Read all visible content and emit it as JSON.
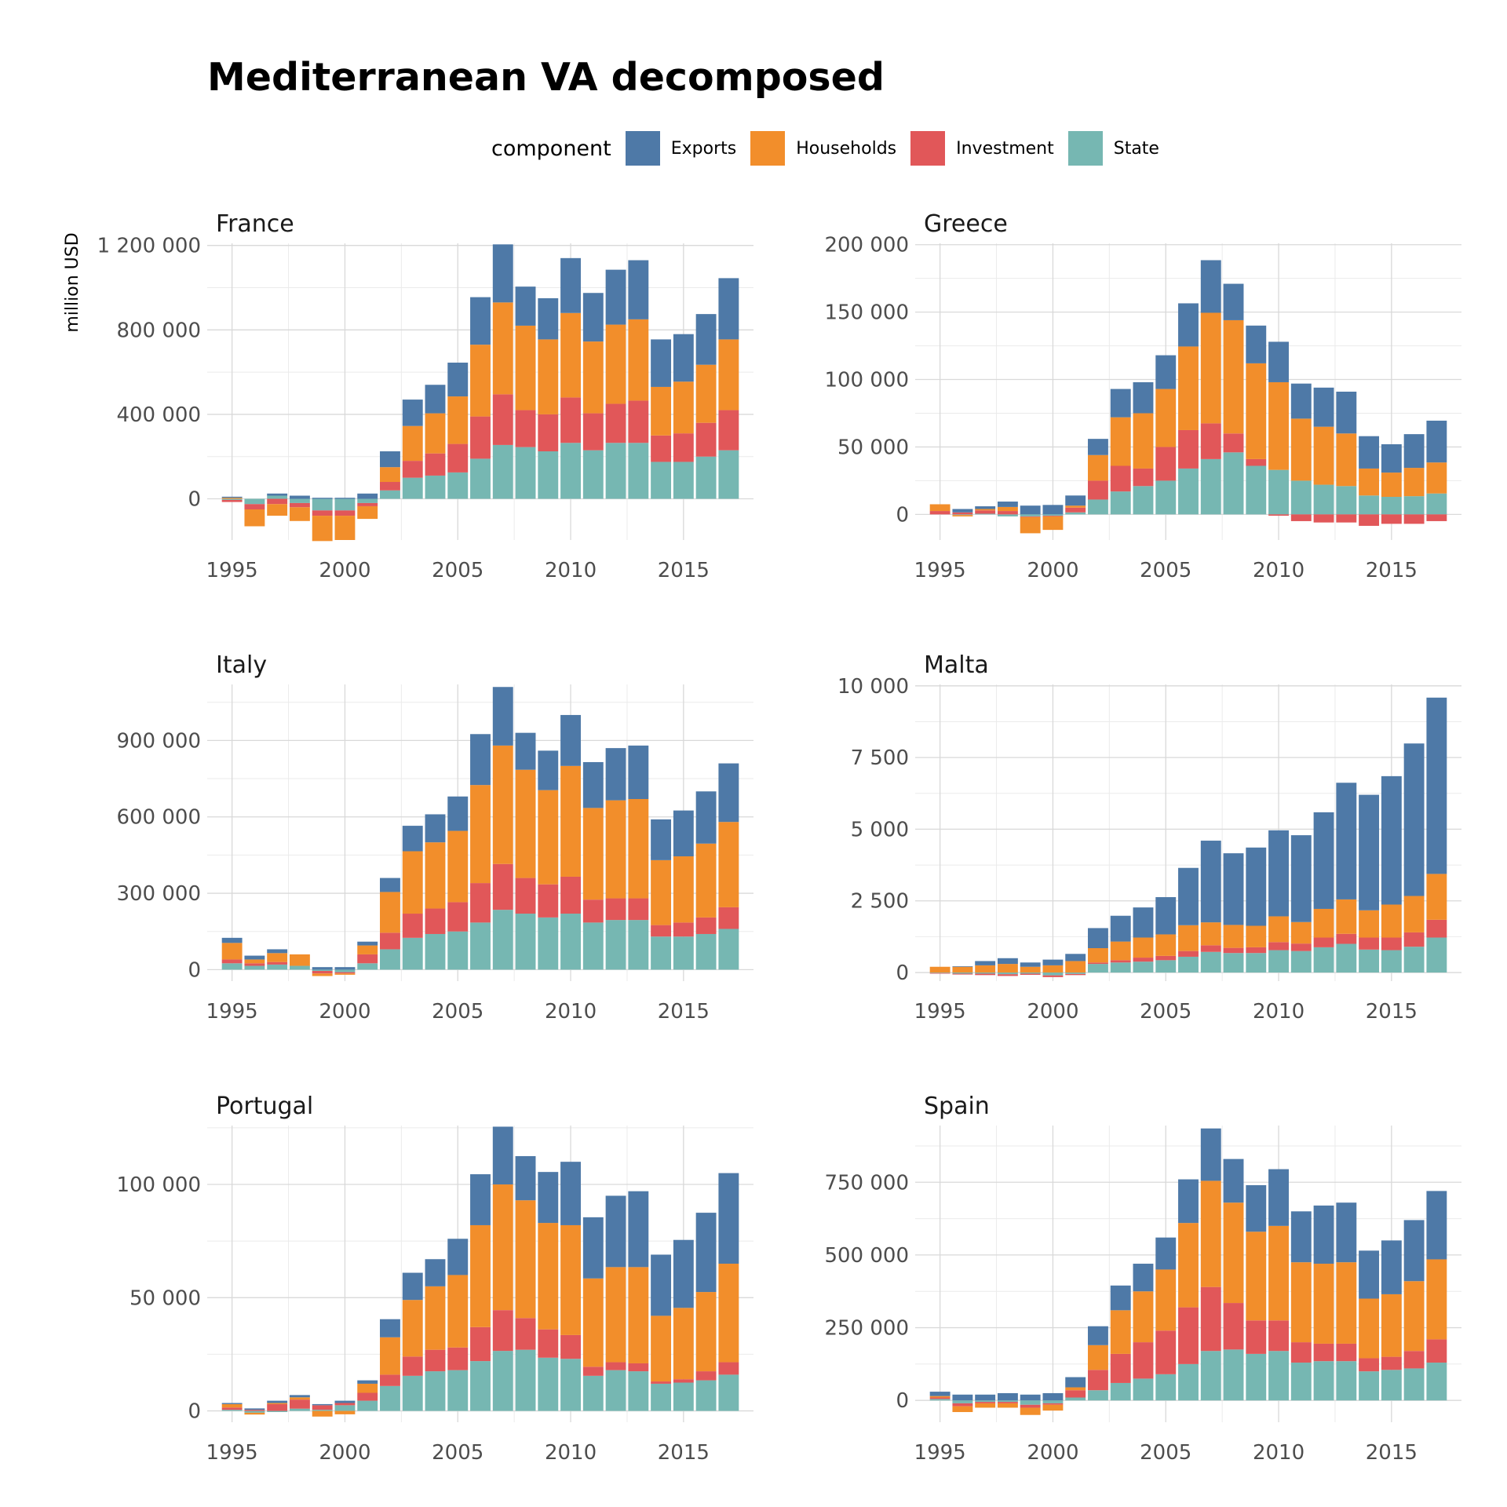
{
  "title": "Mediterranean VA decomposed",
  "legend": {
    "title": "component",
    "items": [
      {
        "label": "Exports",
        "color": "#4e79a7"
      },
      {
        "label": "Households",
        "color": "#f28e2b"
      },
      {
        "label": "Investment",
        "color": "#e15759"
      },
      {
        "label": "State",
        "color": "#76b7b2"
      }
    ]
  },
  "y_axis_label": "million USD",
  "chart_data": [
    {
      "type": "bar",
      "stacked": true,
      "title": "France",
      "ylabel": "million USD",
      "x": [
        1995,
        1996,
        1997,
        1998,
        1999,
        2000,
        2001,
        2002,
        2003,
        2004,
        2005,
        2006,
        2007,
        2008,
        2009,
        2010,
        2011,
        2012,
        2013,
        2014,
        2015,
        2016,
        2017
      ],
      "ylim": [
        -195000,
        1210000
      ],
      "yticks": [
        0,
        400000,
        800000,
        1200000
      ],
      "yticklabels": [
        "0",
        "400 000",
        "800 000",
        "1 200 000"
      ],
      "series": [
        {
          "name": "State",
          "values": [
            -5000,
            -25000,
            15000,
            -20000,
            -55000,
            -55000,
            -20000,
            40000,
            100000,
            110000,
            125000,
            190000,
            255000,
            245000,
            225000,
            265000,
            230000,
            265000,
            265000,
            175000,
            175000,
            200000,
            230000
          ]
        },
        {
          "name": "Investment",
          "values": [
            -10000,
            -25000,
            -25000,
            -20000,
            -25000,
            -25000,
            -15000,
            40000,
            80000,
            105000,
            135000,
            200000,
            240000,
            175000,
            175000,
            215000,
            175000,
            185000,
            200000,
            125000,
            135000,
            160000,
            190000
          ]
        },
        {
          "name": "Households",
          "values": [
            5000,
            -80000,
            -55000,
            -65000,
            -120000,
            -115000,
            -60000,
            70000,
            165000,
            190000,
            225000,
            340000,
            435000,
            400000,
            355000,
            400000,
            340000,
            375000,
            385000,
            230000,
            245000,
            275000,
            335000
          ]
        },
        {
          "name": "Exports",
          "values": [
            5000,
            0,
            10000,
            15000,
            5000,
            5000,
            25000,
            75000,
            125000,
            135000,
            160000,
            225000,
            275000,
            185000,
            195000,
            260000,
            230000,
            260000,
            280000,
            225000,
            225000,
            240000,
            290000
          ]
        }
      ]
    },
    {
      "type": "bar",
      "stacked": true,
      "title": "Greece",
      "x": [
        1995,
        1996,
        1997,
        1998,
        1999,
        2000,
        2001,
        2002,
        2003,
        2004,
        2005,
        2006,
        2007,
        2008,
        2009,
        2010,
        2011,
        2012,
        2013,
        2014,
        2015,
        2016,
        2017
      ],
      "ylim": [
        -19000,
        201000
      ],
      "yticks": [
        0,
        50000,
        100000,
        150000,
        200000
      ],
      "yticklabels": [
        "0",
        "50 000",
        "100 000",
        "150 000",
        "200 000"
      ],
      "series": [
        {
          "name": "State",
          "values": [
            0,
            -500,
            500,
            -1500,
            -1500,
            -1000,
            1500,
            11000,
            17000,
            21000,
            25000,
            34000,
            41000,
            46000,
            36000,
            33000,
            25000,
            22000,
            21000,
            14000,
            13000,
            13500,
            15500
          ]
        },
        {
          "name": "Investment",
          "values": [
            2500,
            1500,
            2500,
            2500,
            -500,
            -500,
            3500,
            14000,
            19000,
            13000,
            25000,
            28500,
            26500,
            14000,
            5000,
            -1000,
            -5000,
            -6000,
            -6000,
            -8500,
            -7000,
            -7000,
            -5000
          ]
        },
        {
          "name": "Households",
          "values": [
            5000,
            -1000,
            1000,
            3000,
            -12000,
            -10000,
            1500,
            19000,
            36000,
            41000,
            43000,
            62000,
            82000,
            84000,
            71000,
            65000,
            46000,
            43000,
            39000,
            20000,
            18000,
            21000,
            23000
          ]
        },
        {
          "name": "Exports",
          "values": [
            0,
            2500,
            2000,
            4000,
            6500,
            7000,
            7500,
            12000,
            21000,
            23000,
            25000,
            32000,
            39000,
            27000,
            28000,
            30000,
            26000,
            29000,
            31000,
            24000,
            21000,
            25000,
            31000
          ]
        }
      ]
    },
    {
      "type": "bar",
      "stacked": true,
      "title": "Italy",
      "x": [
        1995,
        1996,
        1997,
        1998,
        1999,
        2000,
        2001,
        2002,
        2003,
        2004,
        2005,
        2006,
        2007,
        2008,
        2009,
        2010,
        2011,
        2012,
        2013,
        2014,
        2015,
        2016,
        2017
      ],
      "ylim": [
        -45000,
        1120000
      ],
      "yticks": [
        0,
        300000,
        600000,
        900000
      ],
      "yticklabels": [
        "0",
        "300 000",
        "600 000",
        "900 000"
      ],
      "series": [
        {
          "name": "State",
          "values": [
            25000,
            15000,
            20000,
            15000,
            -5000,
            -10000,
            25000,
            80000,
            125000,
            140000,
            150000,
            185000,
            235000,
            220000,
            205000,
            220000,
            185000,
            195000,
            195000,
            130000,
            130000,
            140000,
            160000
          ]
        },
        {
          "name": "Investment",
          "values": [
            15000,
            10000,
            10000,
            0,
            -10000,
            -5000,
            35000,
            65000,
            95000,
            100000,
            115000,
            155000,
            180000,
            140000,
            130000,
            145000,
            90000,
            85000,
            85000,
            45000,
            55000,
            65000,
            85000
          ]
        },
        {
          "name": "Households",
          "values": [
            65000,
            15000,
            35000,
            45000,
            -10000,
            -5000,
            35000,
            160000,
            245000,
            260000,
            280000,
            385000,
            465000,
            425000,
            370000,
            435000,
            360000,
            385000,
            390000,
            255000,
            260000,
            290000,
            335000
          ]
        },
        {
          "name": "Exports",
          "values": [
            20000,
            15000,
            15000,
            0,
            10000,
            10000,
            15000,
            55000,
            100000,
            110000,
            135000,
            200000,
            230000,
            145000,
            155000,
            200000,
            180000,
            205000,
            210000,
            160000,
            180000,
            205000,
            230000
          ]
        }
      ]
    },
    {
      "type": "bar",
      "stacked": true,
      "title": "Malta",
      "x": [
        1995,
        1996,
        1997,
        1998,
        1999,
        2000,
        2001,
        2002,
        2003,
        2004,
        2005,
        2006,
        2007,
        2008,
        2009,
        2010,
        2011,
        2012,
        2013,
        2014,
        2015,
        2016,
        2017
      ],
      "ylim": [
        -300,
        10050
      ],
      "yticks": [
        0,
        2500,
        5000,
        7500,
        10000
      ],
      "yticklabels": [
        "0",
        "2 500",
        "5 000",
        "7 500",
        "10 000"
      ],
      "series": [
        {
          "name": "State",
          "values": [
            -20,
            -40,
            -40,
            -60,
            -40,
            -100,
            -50,
            300,
            350,
            380,
            430,
            550,
            720,
            680,
            680,
            780,
            750,
            880,
            1000,
            800,
            780,
            900,
            1220
          ]
        },
        {
          "name": "Investment",
          "values": [
            -20,
            -30,
            -50,
            -60,
            -40,
            -60,
            -40,
            50,
            80,
            140,
            150,
            200,
            230,
            180,
            200,
            280,
            260,
            340,
            350,
            420,
            440,
            500,
            620
          ]
        },
        {
          "name": "Households",
          "values": [
            200,
            200,
            250,
            300,
            200,
            250,
            400,
            500,
            650,
            700,
            750,
            900,
            800,
            800,
            750,
            900,
            750,
            1000,
            1200,
            950,
            1150,
            1270,
            1600
          ]
        },
        {
          "name": "Exports",
          "values": [
            0,
            20,
            150,
            200,
            150,
            200,
            250,
            700,
            900,
            1050,
            1300,
            2000,
            2850,
            2500,
            2730,
            3000,
            3030,
            3370,
            4070,
            4030,
            4480,
            5320,
            6150
          ]
        }
      ]
    },
    {
      "type": "bar",
      "stacked": true,
      "title": "Portugal",
      "x": [
        1995,
        1996,
        1997,
        1998,
        1999,
        2000,
        2001,
        2002,
        2003,
        2004,
        2005,
        2006,
        2007,
        2008,
        2009,
        2010,
        2011,
        2012,
        2013,
        2014,
        2015,
        2016,
        2017
      ],
      "ylim": [
        -5000,
        126000
      ],
      "yticks": [
        0,
        50000,
        100000
      ],
      "yticklabels": [
        "0",
        "50 000",
        "100 000"
      ],
      "series": [
        {
          "name": "State",
          "values": [
            500,
            -800,
            -500,
            1000,
            500,
            2500,
            4500,
            11000,
            15500,
            17500,
            18000,
            22000,
            26500,
            27000,
            23500,
            23000,
            15500,
            18000,
            17500,
            12000,
            12500,
            13500,
            16000
          ]
        },
        {
          "name": "Investment",
          "values": [
            1000,
            500,
            3000,
            4000,
            2000,
            1000,
            3500,
            5000,
            8500,
            9500,
            10000,
            15000,
            18000,
            14000,
            12500,
            10500,
            4000,
            3500,
            3500,
            1000,
            1500,
            4000,
            5500
          ]
        },
        {
          "name": "Households",
          "values": [
            1500,
            -800,
            500,
            1000,
            -2500,
            -1500,
            4000,
            16500,
            25000,
            28000,
            32000,
            45000,
            55500,
            52000,
            47000,
            48500,
            39000,
            42000,
            42500,
            29000,
            31500,
            35000,
            43500
          ]
        },
        {
          "name": "Exports",
          "values": [
            500,
            600,
            1000,
            1000,
            500,
            1000,
            1500,
            8000,
            12000,
            12000,
            16000,
            22500,
            25500,
            19500,
            22500,
            28000,
            27000,
            31500,
            33500,
            27000,
            30000,
            35000,
            40000
          ]
        }
      ]
    },
    {
      "type": "bar",
      "stacked": true,
      "title": "Spain",
      "x": [
        1995,
        1996,
        1997,
        1998,
        1999,
        2000,
        2001,
        2002,
        2003,
        2004,
        2005,
        2006,
        2007,
        2008,
        2009,
        2010,
        2011,
        2012,
        2013,
        2014,
        2015,
        2016,
        2017
      ],
      "ylim": [
        -75000,
        945000
      ],
      "yticks": [
        0,
        250000,
        500000,
        750000
      ],
      "yticklabels": [
        "0",
        "250 000",
        "500 000",
        "750 000"
      ],
      "series": [
        {
          "name": "State",
          "values": [
            5000,
            -10000,
            -5000,
            -5000,
            -15000,
            -10000,
            10000,
            35000,
            60000,
            75000,
            90000,
            125000,
            170000,
            175000,
            160000,
            170000,
            130000,
            135000,
            135000,
            100000,
            105000,
            110000,
            130000
          ]
        },
        {
          "name": "Investment",
          "values": [
            5000,
            -10000,
            -5000,
            -5000,
            -10000,
            -5000,
            25000,
            70000,
            100000,
            125000,
            150000,
            195000,
            220000,
            160000,
            115000,
            105000,
            70000,
            60000,
            60000,
            45000,
            45000,
            60000,
            80000
          ]
        },
        {
          "name": "Households",
          "values": [
            5000,
            -20000,
            -15000,
            -15000,
            -25000,
            -20000,
            10000,
            85000,
            150000,
            175000,
            210000,
            290000,
            365000,
            345000,
            305000,
            325000,
            275000,
            275000,
            280000,
            205000,
            215000,
            240000,
            275000
          ]
        },
        {
          "name": "Exports",
          "values": [
            15000,
            20000,
            20000,
            25000,
            20000,
            25000,
            35000,
            65000,
            85000,
            95000,
            110000,
            150000,
            180000,
            150000,
            160000,
            195000,
            175000,
            200000,
            205000,
            165000,
            185000,
            210000,
            235000
          ]
        }
      ]
    }
  ]
}
